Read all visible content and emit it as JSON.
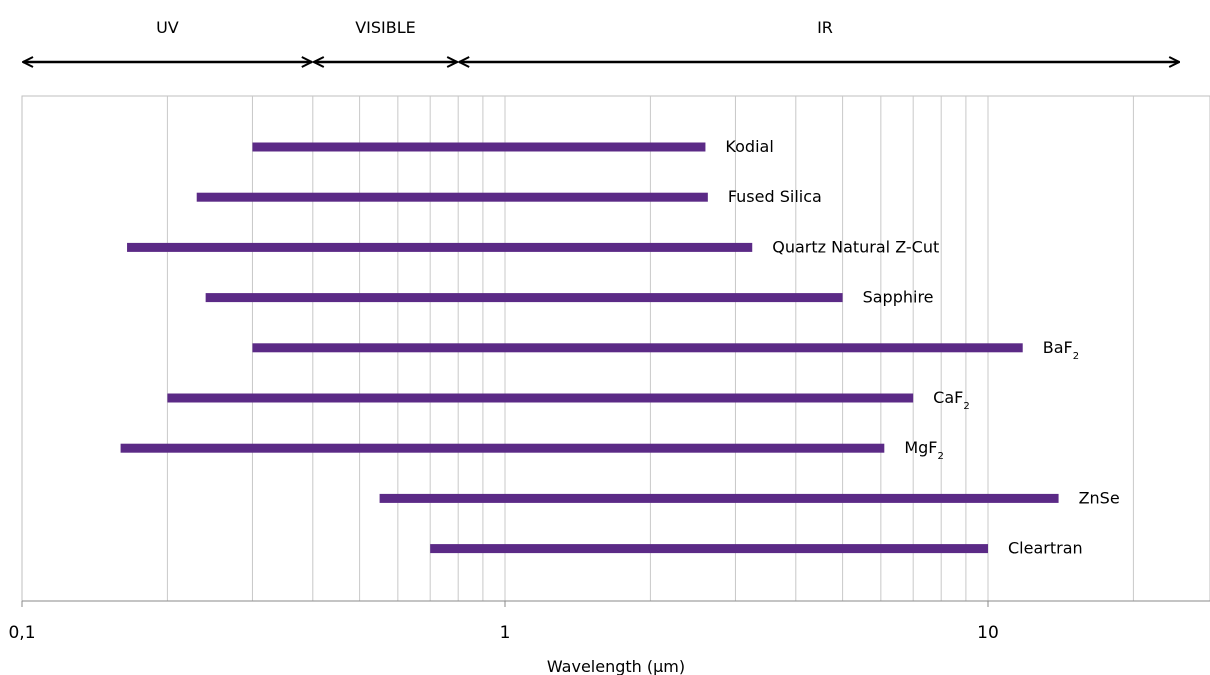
{
  "chart_data": {
    "type": "range-bar",
    "xlabel": "Wavelength (µm)",
    "x_scale": "log",
    "xlim": [
      0.1,
      25
    ],
    "x_ticks": [
      {
        "value": 0.1,
        "label": "0,1"
      },
      {
        "value": 1,
        "label": "1"
      },
      {
        "value": 10,
        "label": "10"
      }
    ],
    "minor_gridlines": [
      0.2,
      0.3,
      0.4,
      0.5,
      0.6,
      0.7,
      0.8,
      0.9,
      1,
      2,
      3,
      4,
      5,
      6,
      7,
      8,
      9,
      10,
      20
    ],
    "grid": true,
    "bar_color": "#5b2a86",
    "regions": [
      {
        "name": "UV",
        "start": 0.1,
        "end": 0.4
      },
      {
        "name": "VISIBLE",
        "start": 0.4,
        "end": 0.8
      },
      {
        "name": "IR",
        "start": 0.8,
        "end": 25
      }
    ],
    "materials": [
      {
        "name": "Kodial",
        "subscript": "",
        "min": 0.3,
        "max": 2.6
      },
      {
        "name": "Fused Silica",
        "subscript": "",
        "min": 0.23,
        "max": 2.63
      },
      {
        "name": "Quartz Natural Z-Cut",
        "subscript": "",
        "min": 0.165,
        "max": 3.25
      },
      {
        "name": "Sapphire",
        "subscript": "",
        "min": 0.24,
        "max": 5.0
      },
      {
        "name": "BaF",
        "subscript": "2",
        "min": 0.3,
        "max": 11.8
      },
      {
        "name": "CaF",
        "subscript": "2",
        "min": 0.2,
        "max": 7.0
      },
      {
        "name": "MgF",
        "subscript": "2",
        "min": 0.16,
        "max": 6.1
      },
      {
        "name": "ZnSe",
        "subscript": "",
        "min": 0.55,
        "max": 14.0
      },
      {
        "name": "Cleartran",
        "subscript": "",
        "min": 0.7,
        "max": 10.0
      }
    ]
  }
}
